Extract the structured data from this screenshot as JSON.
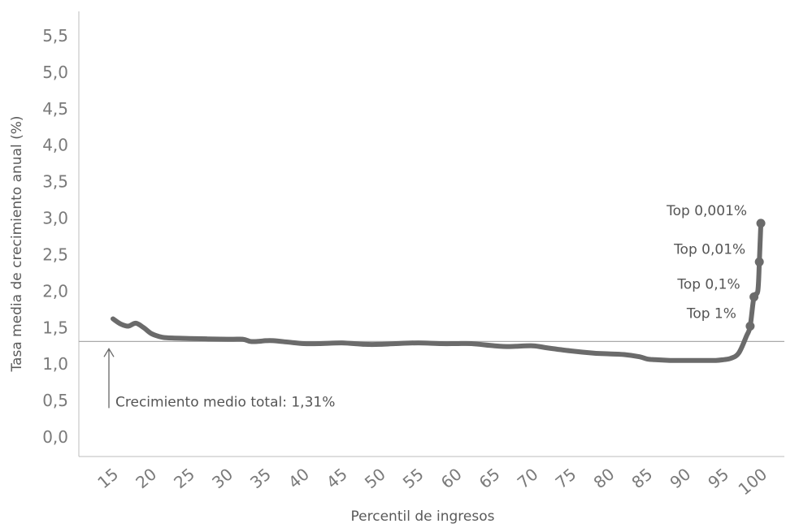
{
  "chart_data": {
    "type": "line",
    "title": "",
    "xlabel": "Percentil de ingresos",
    "ylabel": "Tasa media de crecimiento anual (%)",
    "xlim": [
      13,
      101
    ],
    "ylim": [
      0,
      5.8
    ],
    "x_ticks": [
      15,
      20,
      25,
      30,
      35,
      40,
      45,
      50,
      55,
      60,
      65,
      70,
      75,
      80,
      85,
      90,
      95,
      100
    ],
    "x_tick_labels": [
      "15",
      "20",
      "25",
      "30",
      "35",
      "40",
      "45",
      "50",
      "55",
      "60",
      "65",
      "70",
      "75",
      "80",
      "85",
      "90",
      "95",
      "100"
    ],
    "y_ticks": [
      0,
      0.5,
      1.0,
      1.5,
      2.0,
      2.5,
      3.0,
      3.5,
      4.0,
      4.5,
      5.0,
      5.5
    ],
    "y_tick_labels": [
      "0,0",
      "0,5",
      "1,0",
      "1,5",
      "2,0",
      "2,5",
      "3,0",
      "3,5",
      "4,0",
      "4,5",
      "5,0",
      "5,5"
    ],
    "grid": false,
    "line_color": "#6b6b6b",
    "reference_color": "#aaaaaa",
    "series": [
      {
        "x": [
          15,
          16,
          17,
          18,
          19,
          20,
          21,
          22,
          25,
          30,
          32,
          33,
          34,
          35,
          36,
          38,
          40,
          42,
          45,
          48,
          50,
          52,
          55,
          58,
          60,
          62,
          65,
          67,
          70,
          72,
          75,
          78,
          80,
          82,
          84,
          85,
          86,
          88,
          90,
          92,
          94,
          95,
          96,
          97,
          98,
          98.5,
          99,
          99.5,
          99.7,
          99.9
        ],
        "y": [
          1.62,
          1.55,
          1.52,
          1.56,
          1.5,
          1.42,
          1.38,
          1.36,
          1.35,
          1.34,
          1.34,
          1.31,
          1.31,
          1.32,
          1.32,
          1.3,
          1.28,
          1.28,
          1.29,
          1.27,
          1.27,
          1.28,
          1.29,
          1.28,
          1.28,
          1.28,
          1.25,
          1.24,
          1.25,
          1.22,
          1.18,
          1.15,
          1.14,
          1.13,
          1.1,
          1.07,
          1.06,
          1.05,
          1.05,
          1.05,
          1.05,
          1.06,
          1.08,
          1.15,
          1.38,
          1.52,
          1.92,
          2.0,
          2.4,
          2.93
        ]
      }
    ],
    "points": [
      {
        "x": 98.5,
        "y": 1.52,
        "label": "Top 1%"
      },
      {
        "x": 99.0,
        "y": 1.92,
        "label": "Top 0,1%"
      },
      {
        "x": 99.7,
        "y": 2.4,
        "label": "Top 0,01%"
      },
      {
        "x": 99.9,
        "y": 2.93,
        "label": "Top 0,001%"
      }
    ],
    "reference_line": {
      "y": 1.31,
      "label": "Crecimiento medio total: 1,31%"
    }
  }
}
